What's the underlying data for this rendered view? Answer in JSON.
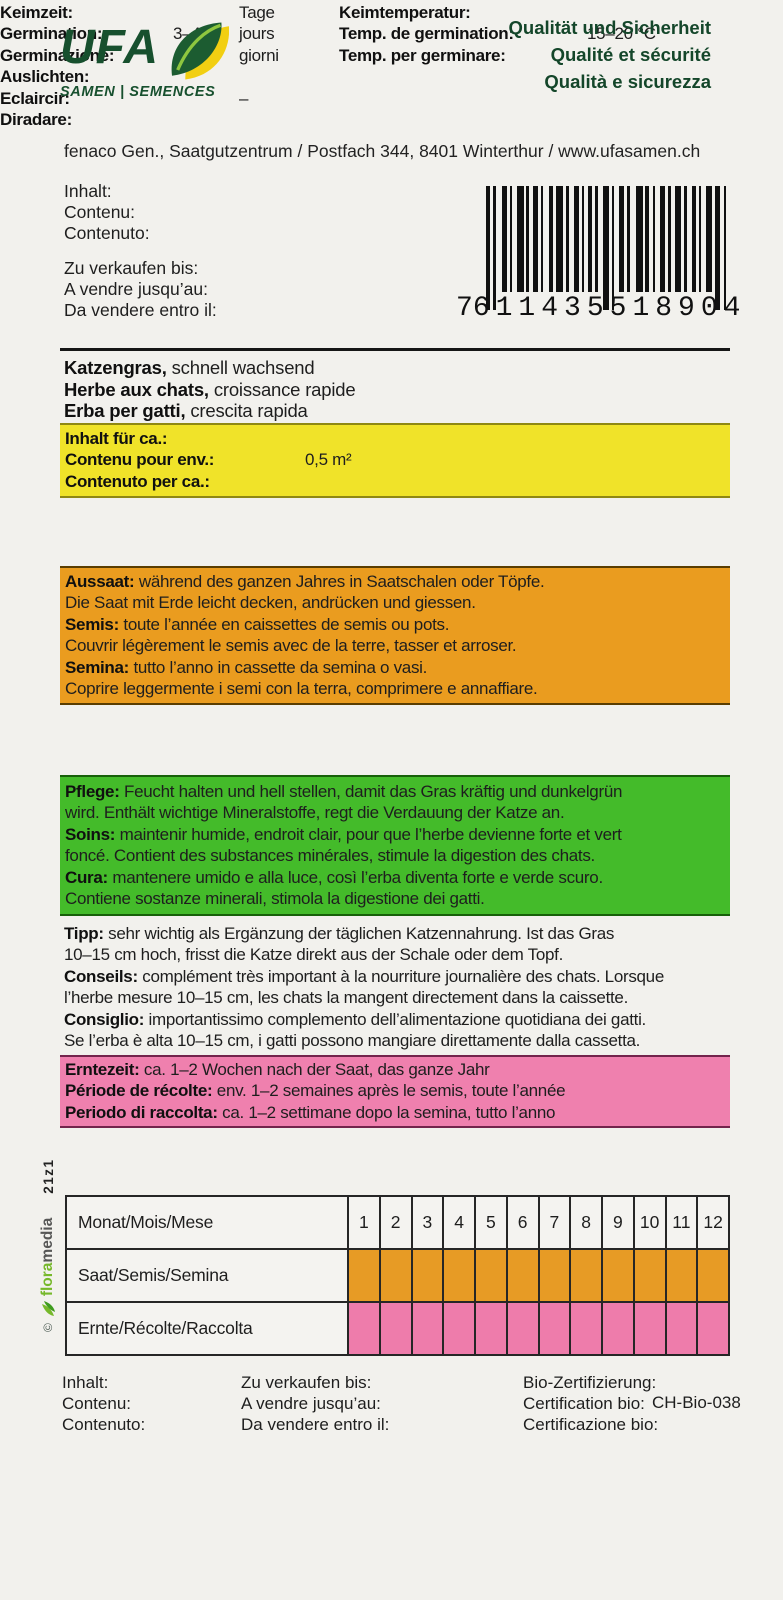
{
  "header": {
    "logo_text": "UFA",
    "logo_subtitle": "SAMEN | SEMENCES",
    "quality_lines": [
      "Qualität und Sicherheit",
      "Qualité et sécurité",
      "Qualità e sicurezza"
    ],
    "address": "fenaco Gen., Saatgutzentrum / Postfach 344, 8401 Winterthur / www.ufasamen.ch"
  },
  "labels": {
    "content": [
      "Inhalt:",
      "Contenu:",
      "Contenuto:"
    ],
    "sell_by": [
      "Zu verkaufen bis:",
      "A vendre jusqu’au:",
      "Da vendere entro il:"
    ]
  },
  "barcode": {
    "first": "7",
    "group1": "611435",
    "group2": "518904"
  },
  "product": {
    "title_lines": [
      {
        "b": "Katzengras,",
        "t": "schnell wachsend"
      },
      {
        "b": "Herbe aux chats,",
        "t": "croissance rapide"
      },
      {
        "b": "Erba per gatti,",
        "t": "crescita rapida"
      }
    ]
  },
  "amount": {
    "labels": [
      "Inhalt für ca.:",
      "Contenu pour env.:",
      "Contenuto per ca.:"
    ],
    "value": "0,5 m²"
  },
  "germination": {
    "labels": [
      "Keimzeit:",
      "Germination:",
      "Germinazione:"
    ],
    "days": "3–4",
    "unit_lines": [
      "Tage",
      "jours",
      "giorni"
    ],
    "temp_labels": [
      "Keimtemperatur:",
      "Temp. de germination:",
      "Temp. per germinare:"
    ],
    "temp": "15–20 °C"
  },
  "sowing": {
    "lines": [
      {
        "b": "Aussaat:",
        "t": "während des ganzen Jahres in Saatschalen oder Töpfe."
      },
      {
        "t": "Die Saat mit Erde leicht decken, andrücken und giessen."
      },
      {
        "b": "Semis:",
        "t": "toute l’année en caissettes de semis ou pots."
      },
      {
        "t": "Couvrir légèrement le semis avec de la terre, tasser et arroser."
      },
      {
        "b": "Semina:",
        "t": "tutto l’anno in cassette da semina o vasi."
      },
      {
        "t": "Coprire leggermente i semi con la terra, comprimere e annaffiare."
      }
    ]
  },
  "thinning": {
    "labels": [
      "Auslichten:",
      "Eclaircir:",
      "Diradare:"
    ],
    "value": "–"
  },
  "care": {
    "lines": [
      {
        "b": "Pflege:",
        "t": "Feucht halten und hell stellen, damit das Gras kräftig und dunkelgrün"
      },
      {
        "t": "wird. Enthält wichtige Mineralstoffe, regt die Verdauung der Katze an."
      },
      {
        "b": "Soins:",
        "t": "maintenir humide, endroit clair, pour que l’herbe devienne forte et vert"
      },
      {
        "t": "foncé. Contient des substances minérales, stimule la digestion des chats."
      },
      {
        "b": "Cura:",
        "t": "mantenere umido e alla luce, così l’erba diventa forte e verde scuro."
      },
      {
        "t": "Contiene sostanze minerali, stimola la digestione dei gatti."
      }
    ]
  },
  "tip": {
    "lines": [
      {
        "b": "Tipp:",
        "t": "sehr wichtig als Ergänzung der täglichen Katzennahrung. Ist das Gras"
      },
      {
        "t": "10–15 cm hoch, frisst die Katze direkt aus der Schale oder dem Topf."
      },
      {
        "b": "Conseils:",
        "t": "complément très important à la nourriture journalière des chats. Lorsque"
      },
      {
        "t": "l’herbe mesure 10–15 cm, les chats la mangent directement dans la caissette."
      },
      {
        "b": "Consiglio:",
        "t": "importantissimo complemento dell’alimentazione quotidiana dei gatti."
      },
      {
        "t": "Se l’erba è alta 10–15 cm, i gatti possono mangiare direttamente dalla cassetta."
      }
    ]
  },
  "harvest": {
    "lines": [
      {
        "b": "Erntezeit:",
        "t": "ca. 1–2 Wochen nach der Saat, das ganze Jahr"
      },
      {
        "b": "Période de récolte:",
        "t": "env. 1–2 semaines après le semis, toute l’année"
      },
      {
        "b": "Periodo di raccolta:",
        "t": "ca. 1–2 settimane dopo la semina, tutto l’anno"
      }
    ]
  },
  "calendar": {
    "month_label": "Monat/Mois/Mese",
    "months": [
      "1",
      "2",
      "3",
      "4",
      "5",
      "6",
      "7",
      "8",
      "9",
      "10",
      "11",
      "12"
    ],
    "rows": [
      {
        "label": "Saat/Semis/Semina",
        "color": "#e79b25",
        "active_months": [
          1,
          2,
          3,
          4,
          5,
          6,
          7,
          8,
          9,
          10,
          11,
          12
        ]
      },
      {
        "label": "Ernte/Récolte/Raccolta",
        "color": "#ee7cab",
        "active_months": [
          1,
          2,
          3,
          4,
          5,
          6,
          7,
          8,
          9,
          10,
          11,
          12
        ]
      }
    ]
  },
  "footer": {
    "bio_labels": [
      "Bio-Zertifizierung:",
      "Certification bio:",
      "Certificazione bio:"
    ],
    "bio_value": "CH-Bio-038"
  },
  "side": {
    "copyright": "©",
    "flora": "flora",
    "media": "media",
    "code": "21z1"
  },
  "colors": {
    "brand_green": "#17502e",
    "yellow_block": "#f0e329",
    "orange_block": "#ea9c1f",
    "green_block": "#44bb2a",
    "pink_block": "#ef80ae",
    "table_sow": "#e79b25",
    "table_harvest": "#ee7cab"
  }
}
